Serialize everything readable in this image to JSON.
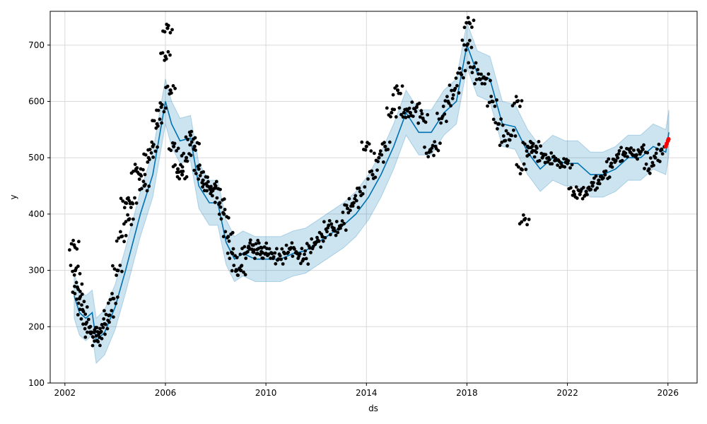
{
  "chart_data": {
    "type": "scatter",
    "title": "",
    "xlabel": "ds",
    "ylabel": "y",
    "x_is_date": true,
    "xlim": [
      "2001-06-01",
      "2027-03-01"
    ],
    "ylim": [
      100,
      760
    ],
    "xticks": [
      "2002",
      "2006",
      "2010",
      "2014",
      "2018",
      "2022",
      "2026"
    ],
    "yticks": [
      100,
      200,
      300,
      400,
      500,
      600,
      700
    ],
    "grid": true,
    "legend": "none",
    "colors": {
      "observed": "#000000",
      "forecast_line": "#0072B2",
      "uncertainty_band": "#0072B2",
      "recent_points": "#FF0000",
      "grid": "#d9d9d9"
    },
    "series": [
      {
        "kind": "observed-points",
        "x": [
          "2002-05-15",
          "2002-06-01",
          "2002-07-01",
          "2002-08-01",
          "2002-09-15",
          "2002-11-01",
          "2003-01-01",
          "2003-03-01",
          "2003-04-15",
          "2003-06-01",
          "2003-08-01",
          "2003-10-01",
          "2003-12-01",
          "2004-02-01",
          "2004-04-01",
          "2004-06-01",
          "2004-07-15",
          "2004-09-01",
          "2004-11-01",
          "2005-01-01",
          "2005-03-01",
          "2005-05-01",
          "2005-07-01",
          "2005-09-01",
          "2005-11-01",
          "2006-01-01",
          "2006-02-01",
          "2006-03-15",
          "2006-05-01",
          "2006-07-01",
          "2006-09-01",
          "2006-11-01",
          "2007-01-01",
          "2007-03-01",
          "2007-05-01",
          "2007-07-01",
          "2007-09-01",
          "2007-11-01",
          "2008-01-01",
          "2008-03-01",
          "2008-05-01",
          "2008-07-01",
          "2008-09-01",
          "2008-11-01",
          "2009-01-01",
          "2009-03-01",
          "2009-05-01",
          "2009-07-01",
          "2009-09-01",
          "2009-11-01",
          "2010-01-01",
          "2010-04-01",
          "2010-07-01",
          "2010-10-01",
          "2011-01-01",
          "2011-04-01",
          "2011-07-01",
          "2011-10-01",
          "2012-01-01",
          "2012-04-01",
          "2012-07-01",
          "2012-10-01",
          "2013-01-01",
          "2013-04-01",
          "2013-07-01",
          "2013-10-01",
          "2014-01-01",
          "2014-04-01",
          "2014-07-01",
          "2014-10-01",
          "2015-01-01",
          "2015-04-01",
          "2015-07-01",
          "2015-10-01",
          "2016-01-01",
          "2016-04-01",
          "2016-07-01",
          "2016-10-01",
          "2017-01-01",
          "2017-04-01",
          "2017-07-01",
          "2017-10-01",
          "2018-01-01",
          "2018-02-01",
          "2018-04-01",
          "2018-07-01",
          "2018-10-01",
          "2019-01-01",
          "2019-04-01",
          "2019-07-01",
          "2019-10-01",
          "2020-01-01",
          "2020-03-01",
          "2020-04-15",
          "2020-06-01",
          "2020-08-01",
          "2020-10-01",
          "2021-01-01",
          "2021-04-01",
          "2021-07-01",
          "2021-10-01",
          "2022-01-01",
          "2022-04-01",
          "2022-07-01",
          "2022-10-01",
          "2023-01-01",
          "2023-04-01",
          "2023-07-01",
          "2023-10-01",
          "2024-01-01",
          "2024-04-01",
          "2024-07-01",
          "2024-10-01",
          "2025-01-01",
          "2025-04-01",
          "2025-07-01",
          "2025-10-01"
        ],
        "y": [
          345,
          300,
          270,
          250,
          230,
          205,
          190,
          190,
          175,
          190,
          205,
          220,
          250,
          300,
          360,
          420,
          390,
          420,
          480,
          470,
          450,
          500,
          520,
          560,
          590,
          680,
          730,
          620,
          520,
          480,
          470,
          500,
          540,
          520,
          480,
          460,
          450,
          440,
          450,
          420,
          400,
          360,
          330,
          300,
          300,
          330,
          340,
          345,
          330,
          340,
          330,
          330,
          320,
          330,
          340,
          330,
          320,
          340,
          350,
          360,
          380,
          370,
          380,
          410,
          420,
          440,
          520,
          470,
          500,
          520,
          580,
          620,
          580,
          580,
          590,
          570,
          510,
          520,
          570,
          600,
          620,
          650,
          700,
          740,
          660,
          640,
          640,
          600,
          560,
          530,
          540,
          600,
          480,
          390,
          520,
          510,
          520,
          500,
          500,
          495,
          490,
          490,
          440,
          435,
          440,
          450,
          460,
          470,
          490,
          500,
          510,
          510,
          505,
          515,
          480,
          500,
          515
        ]
      },
      {
        "kind": "forecast-line",
        "x": [
          "2002-05-15",
          "2002-08-01",
          "2002-11-01",
          "2003-02-01",
          "2003-04-01",
          "2003-08-01",
          "2004-01-01",
          "2004-06-01",
          "2005-01-01",
          "2005-07-01",
          "2006-01-01",
          "2006-04-01",
          "2006-08-01",
          "2007-01-01",
          "2007-05-01",
          "2007-10-01",
          "2008-02-01",
          "2008-06-01",
          "2008-10-01",
          "2009-02-01",
          "2009-08-01",
          "2010-02-01",
          "2010-08-01",
          "2011-02-01",
          "2011-08-01",
          "2012-02-01",
          "2012-08-01",
          "2013-02-01",
          "2013-08-01",
          "2014-02-01",
          "2014-08-01",
          "2015-02-01",
          "2015-08-01",
          "2016-02-01",
          "2016-08-01",
          "2017-02-01",
          "2017-08-01",
          "2018-01-01",
          "2018-06-01",
          "2018-12-01",
          "2019-06-01",
          "2019-12-01",
          "2020-06-01",
          "2020-12-01",
          "2021-06-01",
          "2021-12-01",
          "2022-06-01",
          "2022-12-01",
          "2023-06-01",
          "2023-12-01",
          "2024-06-01",
          "2024-12-01",
          "2025-06-01",
          "2025-12-01",
          "2026-01-15"
        ],
        "y": [
          255,
          225,
          215,
          225,
          175,
          190,
          235,
          300,
          400,
          470,
          600,
          560,
          530,
          535,
          450,
          420,
          420,
          350,
          320,
          330,
          320,
          320,
          320,
          330,
          335,
          350,
          365,
          380,
          400,
          430,
          470,
          520,
          580,
          545,
          545,
          580,
          600,
          700,
          650,
          640,
          560,
          555,
          510,
          480,
          500,
          490,
          490,
          470,
          470,
          480,
          500,
          500,
          520,
          510,
          545
        ]
      },
      {
        "kind": "uncertainty-band",
        "x": [
          "2002-05-15",
          "2002-08-01",
          "2002-11-01",
          "2003-02-01",
          "2003-04-01",
          "2003-08-01",
          "2004-01-01",
          "2004-06-01",
          "2005-01-01",
          "2005-07-01",
          "2006-01-01",
          "2006-04-01",
          "2006-08-01",
          "2007-01-01",
          "2007-05-01",
          "2007-10-01",
          "2008-02-01",
          "2008-06-01",
          "2008-10-01",
          "2009-02-01",
          "2009-08-01",
          "2010-02-01",
          "2010-08-01",
          "2011-02-01",
          "2011-08-01",
          "2012-02-01",
          "2012-08-01",
          "2013-02-01",
          "2013-08-01",
          "2014-02-01",
          "2014-08-01",
          "2015-02-01",
          "2015-08-01",
          "2016-02-01",
          "2016-08-01",
          "2017-02-01",
          "2017-08-01",
          "2018-01-01",
          "2018-06-01",
          "2018-12-01",
          "2019-06-01",
          "2019-12-01",
          "2020-06-01",
          "2020-12-01",
          "2021-06-01",
          "2021-12-01",
          "2022-06-01",
          "2022-12-01",
          "2023-06-01",
          "2023-12-01",
          "2024-06-01",
          "2024-12-01",
          "2025-06-01",
          "2025-12-01",
          "2026-01-15"
        ],
        "upper": [
          295,
          265,
          255,
          265,
          215,
          230,
          275,
          340,
          440,
          510,
          640,
          600,
          570,
          575,
          490,
          460,
          460,
          390,
          360,
          370,
          360,
          360,
          360,
          370,
          375,
          390,
          405,
          420,
          440,
          470,
          510,
          560,
          620,
          585,
          585,
          620,
          640,
          740,
          690,
          680,
          600,
          595,
          550,
          520,
          540,
          530,
          530,
          510,
          510,
          520,
          540,
          540,
          560,
          550,
          585
        ],
        "lower": [
          215,
          185,
          175,
          185,
          135,
          150,
          195,
          260,
          360,
          430,
          560,
          520,
          490,
          495,
          410,
          380,
          380,
          310,
          280,
          290,
          280,
          280,
          280,
          290,
          295,
          310,
          325,
          340,
          360,
          390,
          430,
          480,
          540,
          505,
          505,
          540,
          560,
          660,
          610,
          600,
          520,
          515,
          470,
          440,
          460,
          450,
          450,
          430,
          430,
          440,
          460,
          460,
          480,
          470,
          505
        ]
      },
      {
        "kind": "recent-points",
        "x": [
          "2025-12-01",
          "2025-12-15",
          "2026-01-01",
          "2026-01-10"
        ],
        "y": [
          520,
          525,
          530,
          533
        ]
      }
    ]
  }
}
